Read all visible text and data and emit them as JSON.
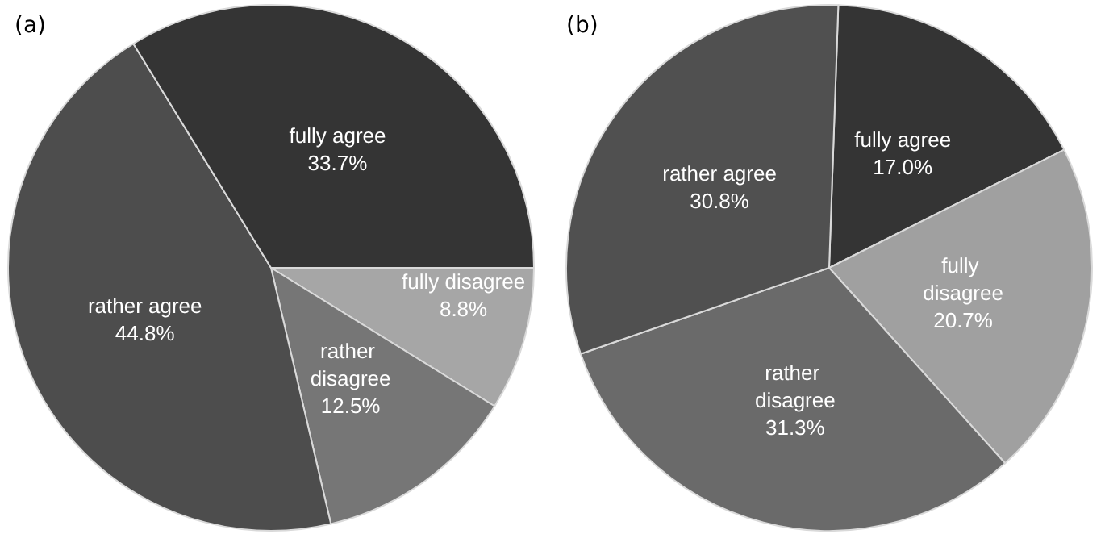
{
  "chart_data": [
    {
      "type": "pie",
      "title": "(a)",
      "categories": [
        "fully disagree",
        "rather disagree",
        "rather agree",
        "fully agree"
      ],
      "values": [
        8.8,
        12.5,
        44.8,
        33.7
      ],
      "value_labels": [
        "8.8%",
        "12.5%",
        "44.8%",
        "33.7%"
      ],
      "colors": [
        "#a6a6a6",
        "#767676",
        "#4d4d4d",
        "#343434"
      ],
      "legend": false
    },
    {
      "type": "pie",
      "title": "(b)",
      "categories": [
        "fully agree",
        "fully disagree",
        "rather disagree",
        "rather agree"
      ],
      "values": [
        17.0,
        20.7,
        31.3,
        30.8
      ],
      "value_labels": [
        "17.0%",
        "20.7%",
        "31.3%",
        "30.8%"
      ],
      "colors": [
        "#343434",
        "#a0a0a0",
        "#6a6a6a",
        "#505050"
      ],
      "legend": false
    }
  ]
}
